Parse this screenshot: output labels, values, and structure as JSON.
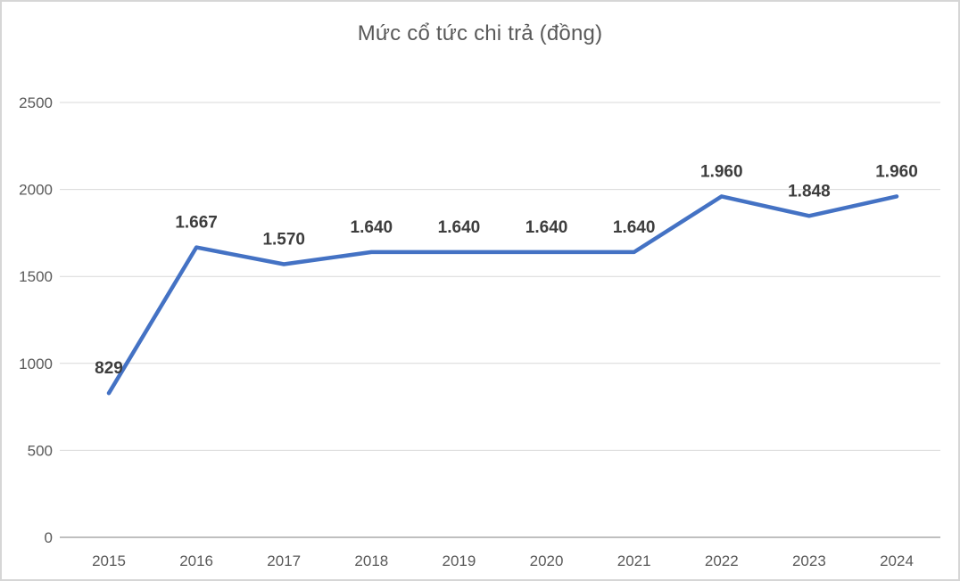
{
  "chart_data": {
    "type": "line",
    "title": "Mức cổ tức chi trả (đồng)",
    "categories": [
      "2015",
      "2016",
      "2017",
      "2018",
      "2019",
      "2020",
      "2021",
      "2022",
      "2023",
      "2024"
    ],
    "series": [
      {
        "name": "Mức cổ tức chi trả",
        "values": [
          829,
          1667,
          1570,
          1640,
          1640,
          1640,
          1640,
          1960,
          1848,
          1960
        ],
        "labels": [
          "829",
          "1.667",
          "1.570",
          "1.640",
          "1.640",
          "1.640",
          "1.640",
          "1.960",
          "1.848",
          "1.960"
        ],
        "color": "#4472C4"
      }
    ],
    "xlabel": "",
    "ylabel": "",
    "ylim": [
      0,
      2500
    ],
    "yticks": [
      0,
      500,
      1000,
      1500,
      2000,
      2500
    ],
    "ytick_labels": [
      "0",
      "500",
      "1000",
      "1500",
      "2000",
      "2500"
    ],
    "grid": true,
    "legend_position": "none",
    "colors": {
      "line": "#4472C4",
      "grid": "#d9d9d9",
      "axis_line": "#bfbfbf",
      "tick_label": "#595959",
      "title": "#595959",
      "data_label": "#3d3d3d",
      "background": "#ffffff",
      "frame_border": "#d6d6d6"
    }
  }
}
